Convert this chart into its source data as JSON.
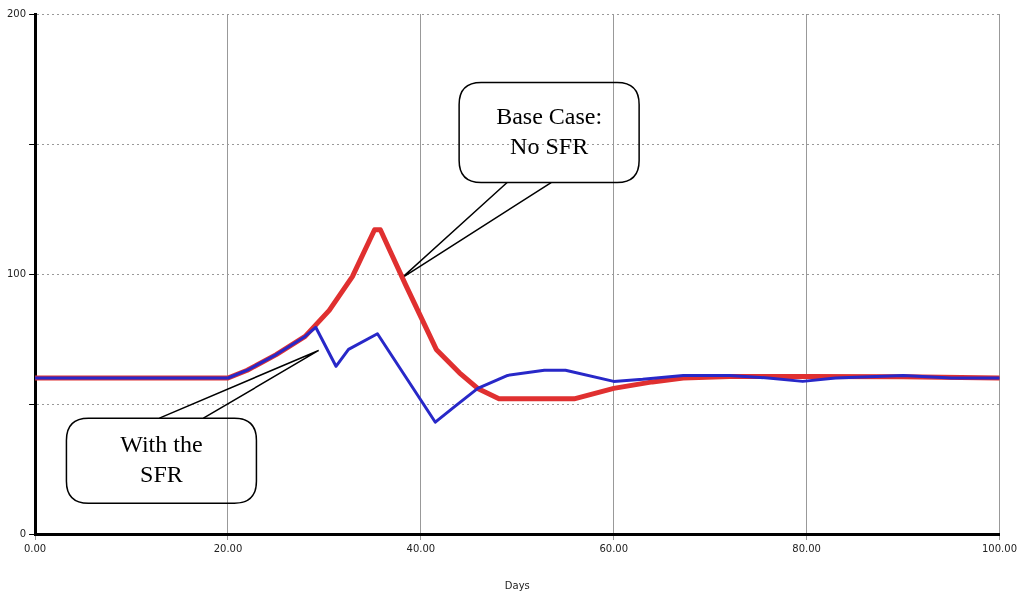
{
  "chart_data": {
    "type": "line",
    "xlabel": "Days",
    "xlim": [
      0,
      100
    ],
    "ylim": [
      0,
      200
    ],
    "xticks": [
      {
        "value": 0,
        "label": "0.00"
      },
      {
        "value": 20,
        "label": "20.00"
      },
      {
        "value": 40,
        "label": "40.00"
      },
      {
        "value": 60,
        "label": "60.00"
      },
      {
        "value": 80,
        "label": "80.00"
      },
      {
        "value": 100,
        "label": "100.00"
      }
    ],
    "yticks": [
      0,
      {
        "value": 50,
        "label": null
      },
      100,
      {
        "value": 150,
        "label": null
      },
      200
    ],
    "grid": true,
    "legend": false,
    "marker": "none",
    "line_style": "solid",
    "series": [
      {
        "color": "#e03030",
        "x": [
          0,
          20,
          22,
          25,
          28,
          30.5,
          32.9,
          35.2,
          35.8,
          38.4,
          41.6,
          44,
          45.9,
          48.1,
          52,
          55.9,
          60,
          64,
          67.2,
          72,
          80,
          90,
          100
        ],
        "values": [
          60,
          60,
          63,
          69,
          76,
          86,
          99,
          117,
          117,
          96,
          71,
          62,
          56,
          52,
          52,
          52,
          56,
          58.5,
          60,
          60.6,
          60.6,
          60.5,
          60
        ]
      },
      {
        "color": "#2828c8",
        "x": [
          0,
          20,
          22,
          25,
          28,
          29.1,
          31.2,
          32.5,
          35.5,
          38.5,
          41.5,
          43.5,
          45.9,
          49,
          52.8,
          55,
          60,
          63,
          67.2,
          72,
          76,
          79.6,
          83,
          90,
          95,
          100
        ],
        "values": [
          60,
          60,
          63,
          69,
          76,
          79.5,
          64.5,
          71,
          77,
          60,
          43,
          49,
          56,
          61,
          63,
          63,
          58.7,
          59.5,
          61,
          61,
          60,
          58.7,
          60,
          61,
          60,
          60
        ]
      }
    ],
    "annotations": [
      "Base Case:\nNo SFR",
      "With the\nSFR"
    ]
  }
}
